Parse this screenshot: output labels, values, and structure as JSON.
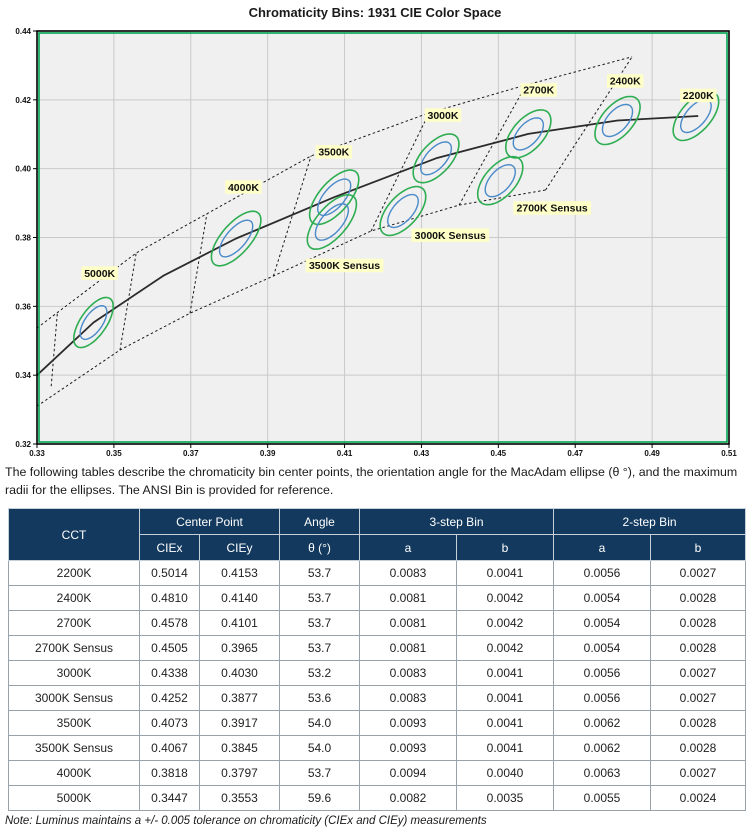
{
  "title": "Chromaticity Bins: 1931 CIE Color Space",
  "description": "The following tables describe the chromaticity bin center points, the orientation angle for the MacAdam ellipse (θ °), and the maximum radii for the ellipses. The ANSI Bin is provided for reference.",
  "note": "Note:  Luminus maintains a +/- 0.005 tolerance on chromaticity (CIEx and CIEy) measurements",
  "chart_data": {
    "type": "scatter",
    "title": "Chromaticity Bins: 1931 CIE Color Space",
    "xlabel": "CIEx",
    "ylabel": "CIEy",
    "xlim": [
      0.33,
      0.51
    ],
    "ylim": [
      0.32,
      0.44
    ],
    "xticks": [
      0.33,
      0.35,
      0.37,
      0.39,
      0.41,
      0.43,
      0.45,
      0.47,
      0.49,
      0.51
    ],
    "yticks": [
      0.32,
      0.34,
      0.36,
      0.38,
      0.4,
      0.42,
      0.44
    ],
    "grid": true,
    "plot_bg": "#f0f0f0",
    "grid_color": "#c9c9c9",
    "frame_color": "#000000",
    "inner_frame_color": "#00A651",
    "locus_color": "#2b2b2b",
    "dashed_color": "#1a1a1a",
    "ellipse_outer_color": "#2EAD52",
    "ellipse_inner_color": "#4A8AC9",
    "label_bg": "#FFFFC8",
    "label_text_color": "#111111",
    "locus": [
      [
        0.33,
        0.34
      ],
      [
        0.3447,
        0.3553
      ],
      [
        0.363,
        0.369
      ],
      [
        0.3818,
        0.3797
      ],
      [
        0.4073,
        0.3917
      ],
      [
        0.4338,
        0.403
      ],
      [
        0.4578,
        0.4101
      ],
      [
        0.481,
        0.414
      ],
      [
        0.502,
        0.4153
      ]
    ],
    "ellipses": [
      {
        "name": "2200K",
        "x": 0.5014,
        "y": 0.4153,
        "angle": 53.7,
        "a3": 0.0083,
        "b3": 0.0041,
        "a2": 0.0056,
        "b2": 0.0027
      },
      {
        "name": "2400K",
        "x": 0.481,
        "y": 0.414,
        "angle": 53.7,
        "a3": 0.0081,
        "b3": 0.0042,
        "a2": 0.0054,
        "b2": 0.0028
      },
      {
        "name": "2700K",
        "x": 0.4578,
        "y": 0.4101,
        "angle": 53.7,
        "a3": 0.0081,
        "b3": 0.0042,
        "a2": 0.0054,
        "b2": 0.0028
      },
      {
        "name": "2700K Sensus",
        "x": 0.4505,
        "y": 0.3965,
        "angle": 53.7,
        "a3": 0.0081,
        "b3": 0.0042,
        "a2": 0.0054,
        "b2": 0.0028
      },
      {
        "name": "3000K",
        "x": 0.4338,
        "y": 0.403,
        "angle": 53.2,
        "a3": 0.0083,
        "b3": 0.0041,
        "a2": 0.0056,
        "b2": 0.0027
      },
      {
        "name": "3000K Sensus",
        "x": 0.4252,
        "y": 0.3877,
        "angle": 53.6,
        "a3": 0.0083,
        "b3": 0.0041,
        "a2": 0.0056,
        "b2": 0.0027
      },
      {
        "name": "3500K",
        "x": 0.4073,
        "y": 0.3917,
        "angle": 54.0,
        "a3": 0.0093,
        "b3": 0.0041,
        "a2": 0.0062,
        "b2": 0.0028
      },
      {
        "name": "3500K Sensus",
        "x": 0.4067,
        "y": 0.3845,
        "angle": 54.0,
        "a3": 0.0093,
        "b3": 0.0041,
        "a2": 0.0062,
        "b2": 0.0028
      },
      {
        "name": "4000K",
        "x": 0.3818,
        "y": 0.3797,
        "angle": 53.7,
        "a3": 0.0094,
        "b3": 0.004,
        "a2": 0.0063,
        "b2": 0.0027
      },
      {
        "name": "5000K",
        "x": 0.3447,
        "y": 0.3553,
        "angle": 59.6,
        "a3": 0.0082,
        "b3": 0.0035,
        "a2": 0.0055,
        "b2": 0.0024
      }
    ],
    "bin_boundaries": {
      "upper": [
        [
          0.33,
          0.3537
        ],
        [
          0.3558,
          0.3755
        ],
        [
          0.4013,
          0.4037
        ],
        [
          0.432,
          0.4162
        ],
        [
          0.4572,
          0.4243
        ],
        [
          0.4848,
          0.4325
        ]
      ],
      "lower": [
        [
          0.33,
          0.331
        ],
        [
          0.3516,
          0.3473
        ],
        [
          0.3698,
          0.358
        ],
        [
          0.3915,
          0.3688
        ],
        [
          0.4169,
          0.3819
        ],
        [
          0.4398,
          0.3894
        ],
        [
          0.4623,
          0.3938
        ]
      ],
      "dividers": [
        [
          [
            0.3337,
            0.3368
          ],
          [
            0.3353,
            0.3582
          ]
        ],
        [
          [
            0.3516,
            0.3473
          ],
          [
            0.3558,
            0.3755
          ]
        ],
        [
          [
            0.3698,
            0.358
          ],
          [
            0.3742,
            0.3869
          ]
        ],
        [
          [
            0.3915,
            0.3688
          ],
          [
            0.4013,
            0.4037
          ]
        ],
        [
          [
            0.4169,
            0.3819
          ],
          [
            0.432,
            0.4162
          ]
        ],
        [
          [
            0.4398,
            0.3894
          ],
          [
            0.4572,
            0.4243
          ]
        ],
        [
          [
            0.4623,
            0.3938
          ],
          [
            0.4848,
            0.4325
          ]
        ]
      ]
    },
    "labels": [
      {
        "text": "2200K",
        "x": 0.502,
        "y": 0.4212
      },
      {
        "text": "2400K",
        "x": 0.483,
        "y": 0.4254
      },
      {
        "text": "2700K",
        "x": 0.4605,
        "y": 0.4228
      },
      {
        "text": "3000K",
        "x": 0.4356,
        "y": 0.4155
      },
      {
        "text": "3500K",
        "x": 0.4072,
        "y": 0.4048
      },
      {
        "text": "4000K",
        "x": 0.3837,
        "y": 0.3946
      },
      {
        "text": "5000K",
        "x": 0.3463,
        "y": 0.3696
      },
      {
        "text": "2700K Sensus",
        "x": 0.464,
        "y": 0.3885
      },
      {
        "text": "3000K Sensus",
        "x": 0.4375,
        "y": 0.3806
      },
      {
        "text": "3500K Sensus",
        "x": 0.41,
        "y": 0.3718
      }
    ]
  },
  "table": {
    "col_groups": {
      "cct": "CCT",
      "center_point": "Center Point",
      "angle": "Angle",
      "bin3": "3-step Bin",
      "bin2": "2-step Bin"
    },
    "sub_headers": {
      "ciex": "CIEx",
      "ciey": "CIEy",
      "theta": "θ (°)",
      "a3": "a",
      "b3": "b",
      "a2": "a",
      "b2": "b"
    },
    "rows": [
      [
        "2200K",
        "0.5014",
        "0.4153",
        "53.7",
        "0.0083",
        "0.0041",
        "0.0056",
        "0.0027"
      ],
      [
        "2400K",
        "0.4810",
        "0.4140",
        "53.7",
        "0.0081",
        "0.0042",
        "0.0054",
        "0.0028"
      ],
      [
        "2700K",
        "0.4578",
        "0.4101",
        "53.7",
        "0.0081",
        "0.0042",
        "0.0054",
        "0.0028"
      ],
      [
        "2700K Sensus",
        "0.4505",
        "0.3965",
        "53.7",
        "0.0081",
        "0.0042",
        "0.0054",
        "0.0028"
      ],
      [
        "3000K",
        "0.4338",
        "0.4030",
        "53.2",
        "0.0083",
        "0.0041",
        "0.0056",
        "0.0027"
      ],
      [
        "3000K Sensus",
        "0.4252",
        "0.3877",
        "53.6",
        "0.0083",
        "0.0041",
        "0.0056",
        "0.0027"
      ],
      [
        "3500K",
        "0.4073",
        "0.3917",
        "54.0",
        "0.0093",
        "0.0041",
        "0.0062",
        "0.0028"
      ],
      [
        "3500K Sensus",
        "0.4067",
        "0.3845",
        "54.0",
        "0.0093",
        "0.0041",
        "0.0062",
        "0.0028"
      ],
      [
        "4000K",
        "0.3818",
        "0.3797",
        "53.7",
        "0.0094",
        "0.0040",
        "0.0063",
        "0.0027"
      ],
      [
        "5000K",
        "0.3447",
        "0.3553",
        "59.6",
        "0.0082",
        "0.0035",
        "0.0055",
        "0.0024"
      ]
    ]
  }
}
